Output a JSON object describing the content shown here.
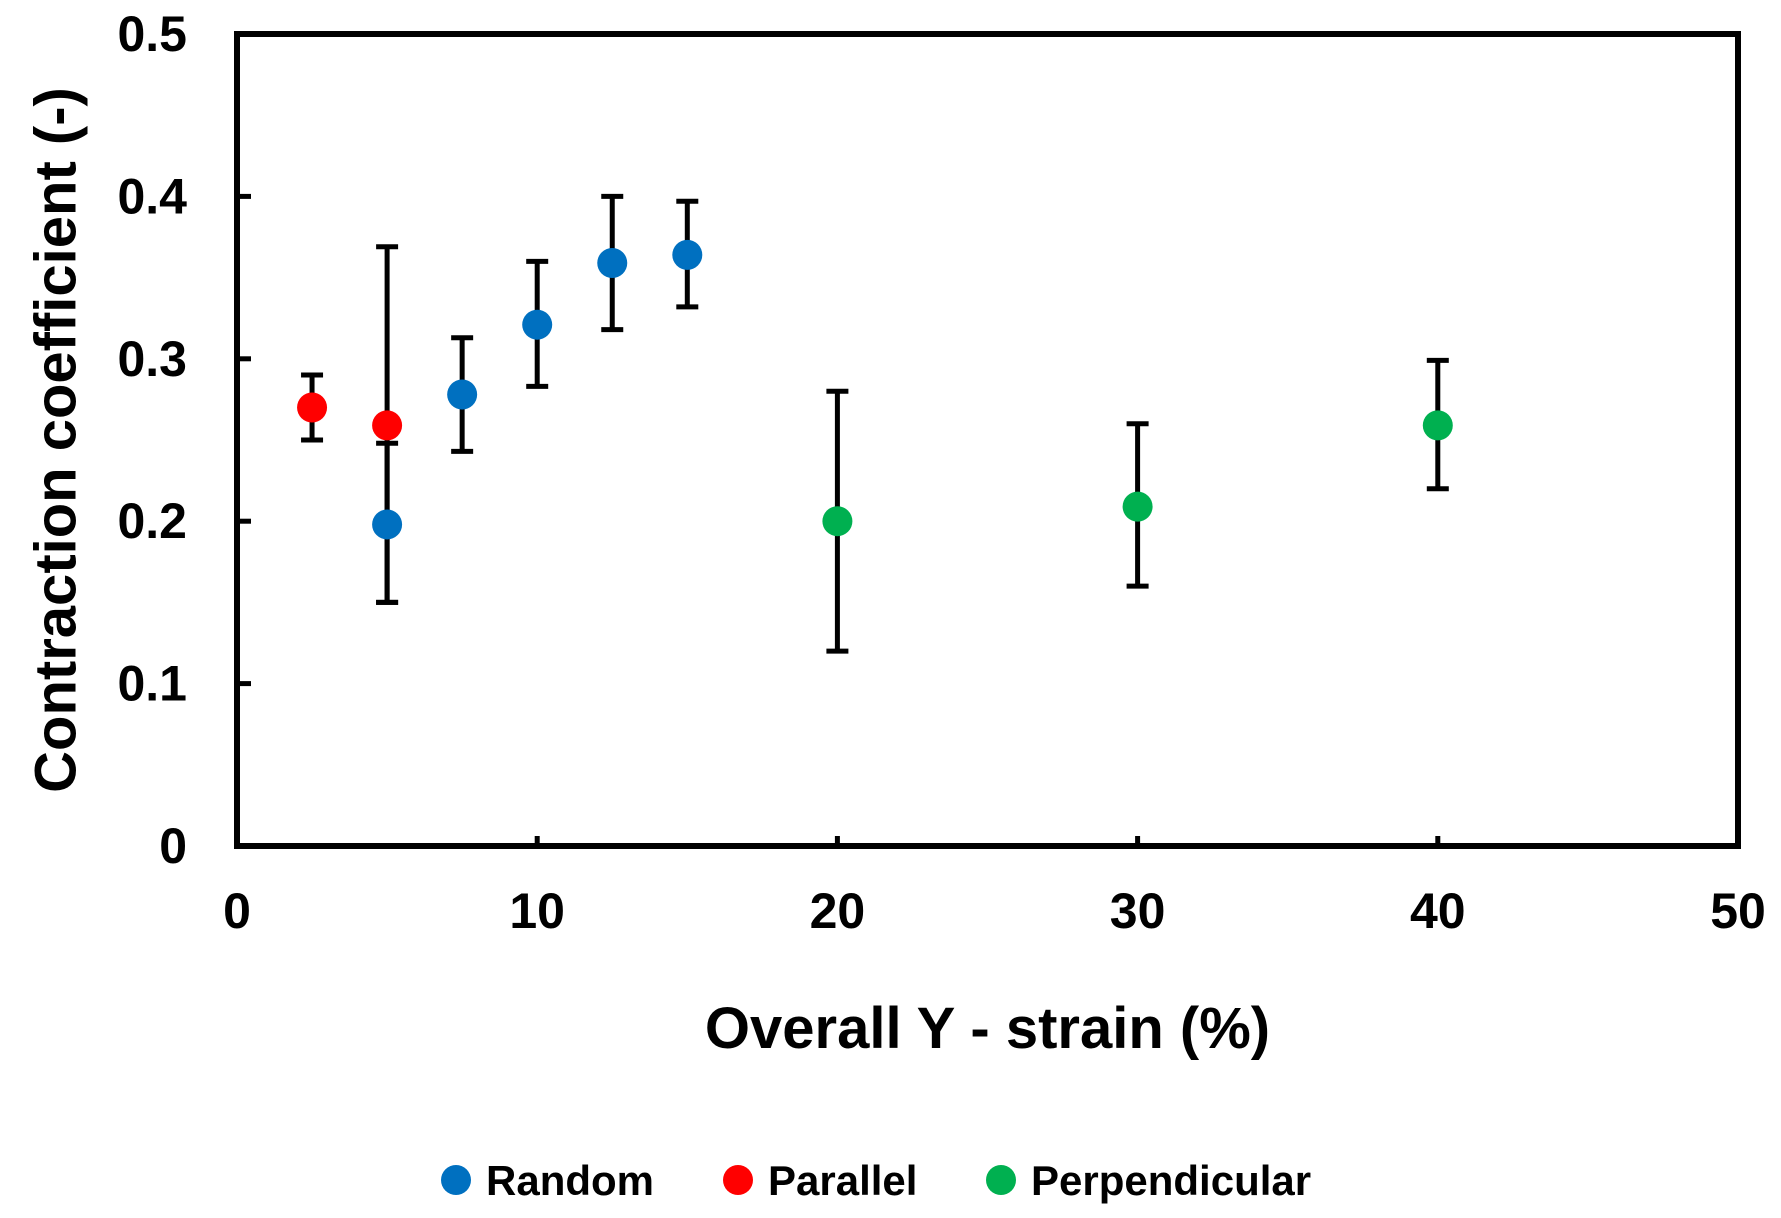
{
  "chart_data": {
    "type": "scatter",
    "xlabel": "Overall Y - strain (%)",
    "ylabel": "Contraction coefficient (-)",
    "xlim": [
      0,
      50
    ],
    "ylim": [
      0,
      0.5
    ],
    "x_ticks": [
      0,
      10,
      20,
      30,
      40,
      50
    ],
    "y_ticks": [
      0,
      0.1,
      0.2,
      0.3,
      0.4,
      0.5
    ],
    "x_tick_labels": [
      "0",
      "10",
      "20",
      "30",
      "40",
      "50"
    ],
    "y_tick_labels": [
      "0",
      "0.1",
      "0.2",
      "0.3",
      "0.4",
      "0.5"
    ],
    "grid": false,
    "error_bars": true,
    "legend_position": "bottom",
    "series": [
      {
        "name": "Random",
        "color": "#0070c0",
        "points": [
          {
            "x": 5,
            "y": 0.198,
            "err_low": 0.15,
            "err_high": 0.248
          },
          {
            "x": 7.5,
            "y": 0.278,
            "err_low": 0.243,
            "err_high": 0.313
          },
          {
            "x": 10,
            "y": 0.321,
            "err_low": 0.283,
            "err_high": 0.36
          },
          {
            "x": 12.5,
            "y": 0.359,
            "err_low": 0.318,
            "err_high": 0.4
          },
          {
            "x": 15,
            "y": 0.364,
            "err_low": 0.332,
            "err_high": 0.397
          }
        ]
      },
      {
        "name": "Parallel",
        "color": "#ff0000",
        "points": [
          {
            "x": 2.5,
            "y": 0.27,
            "err_low": 0.25,
            "err_high": 0.29
          },
          {
            "x": 5,
            "y": 0.259,
            "err_low": 0.15,
            "err_high": 0.369
          }
        ]
      },
      {
        "name": "Perpendicular",
        "color": "#00b050",
        "points": [
          {
            "x": 20,
            "y": 0.2,
            "err_low": 0.12,
            "err_high": 0.28
          },
          {
            "x": 30,
            "y": 0.209,
            "err_low": 0.16,
            "err_high": 0.26
          },
          {
            "x": 40,
            "y": 0.259,
            "err_low": 0.22,
            "err_high": 0.299
          }
        ]
      }
    ]
  }
}
